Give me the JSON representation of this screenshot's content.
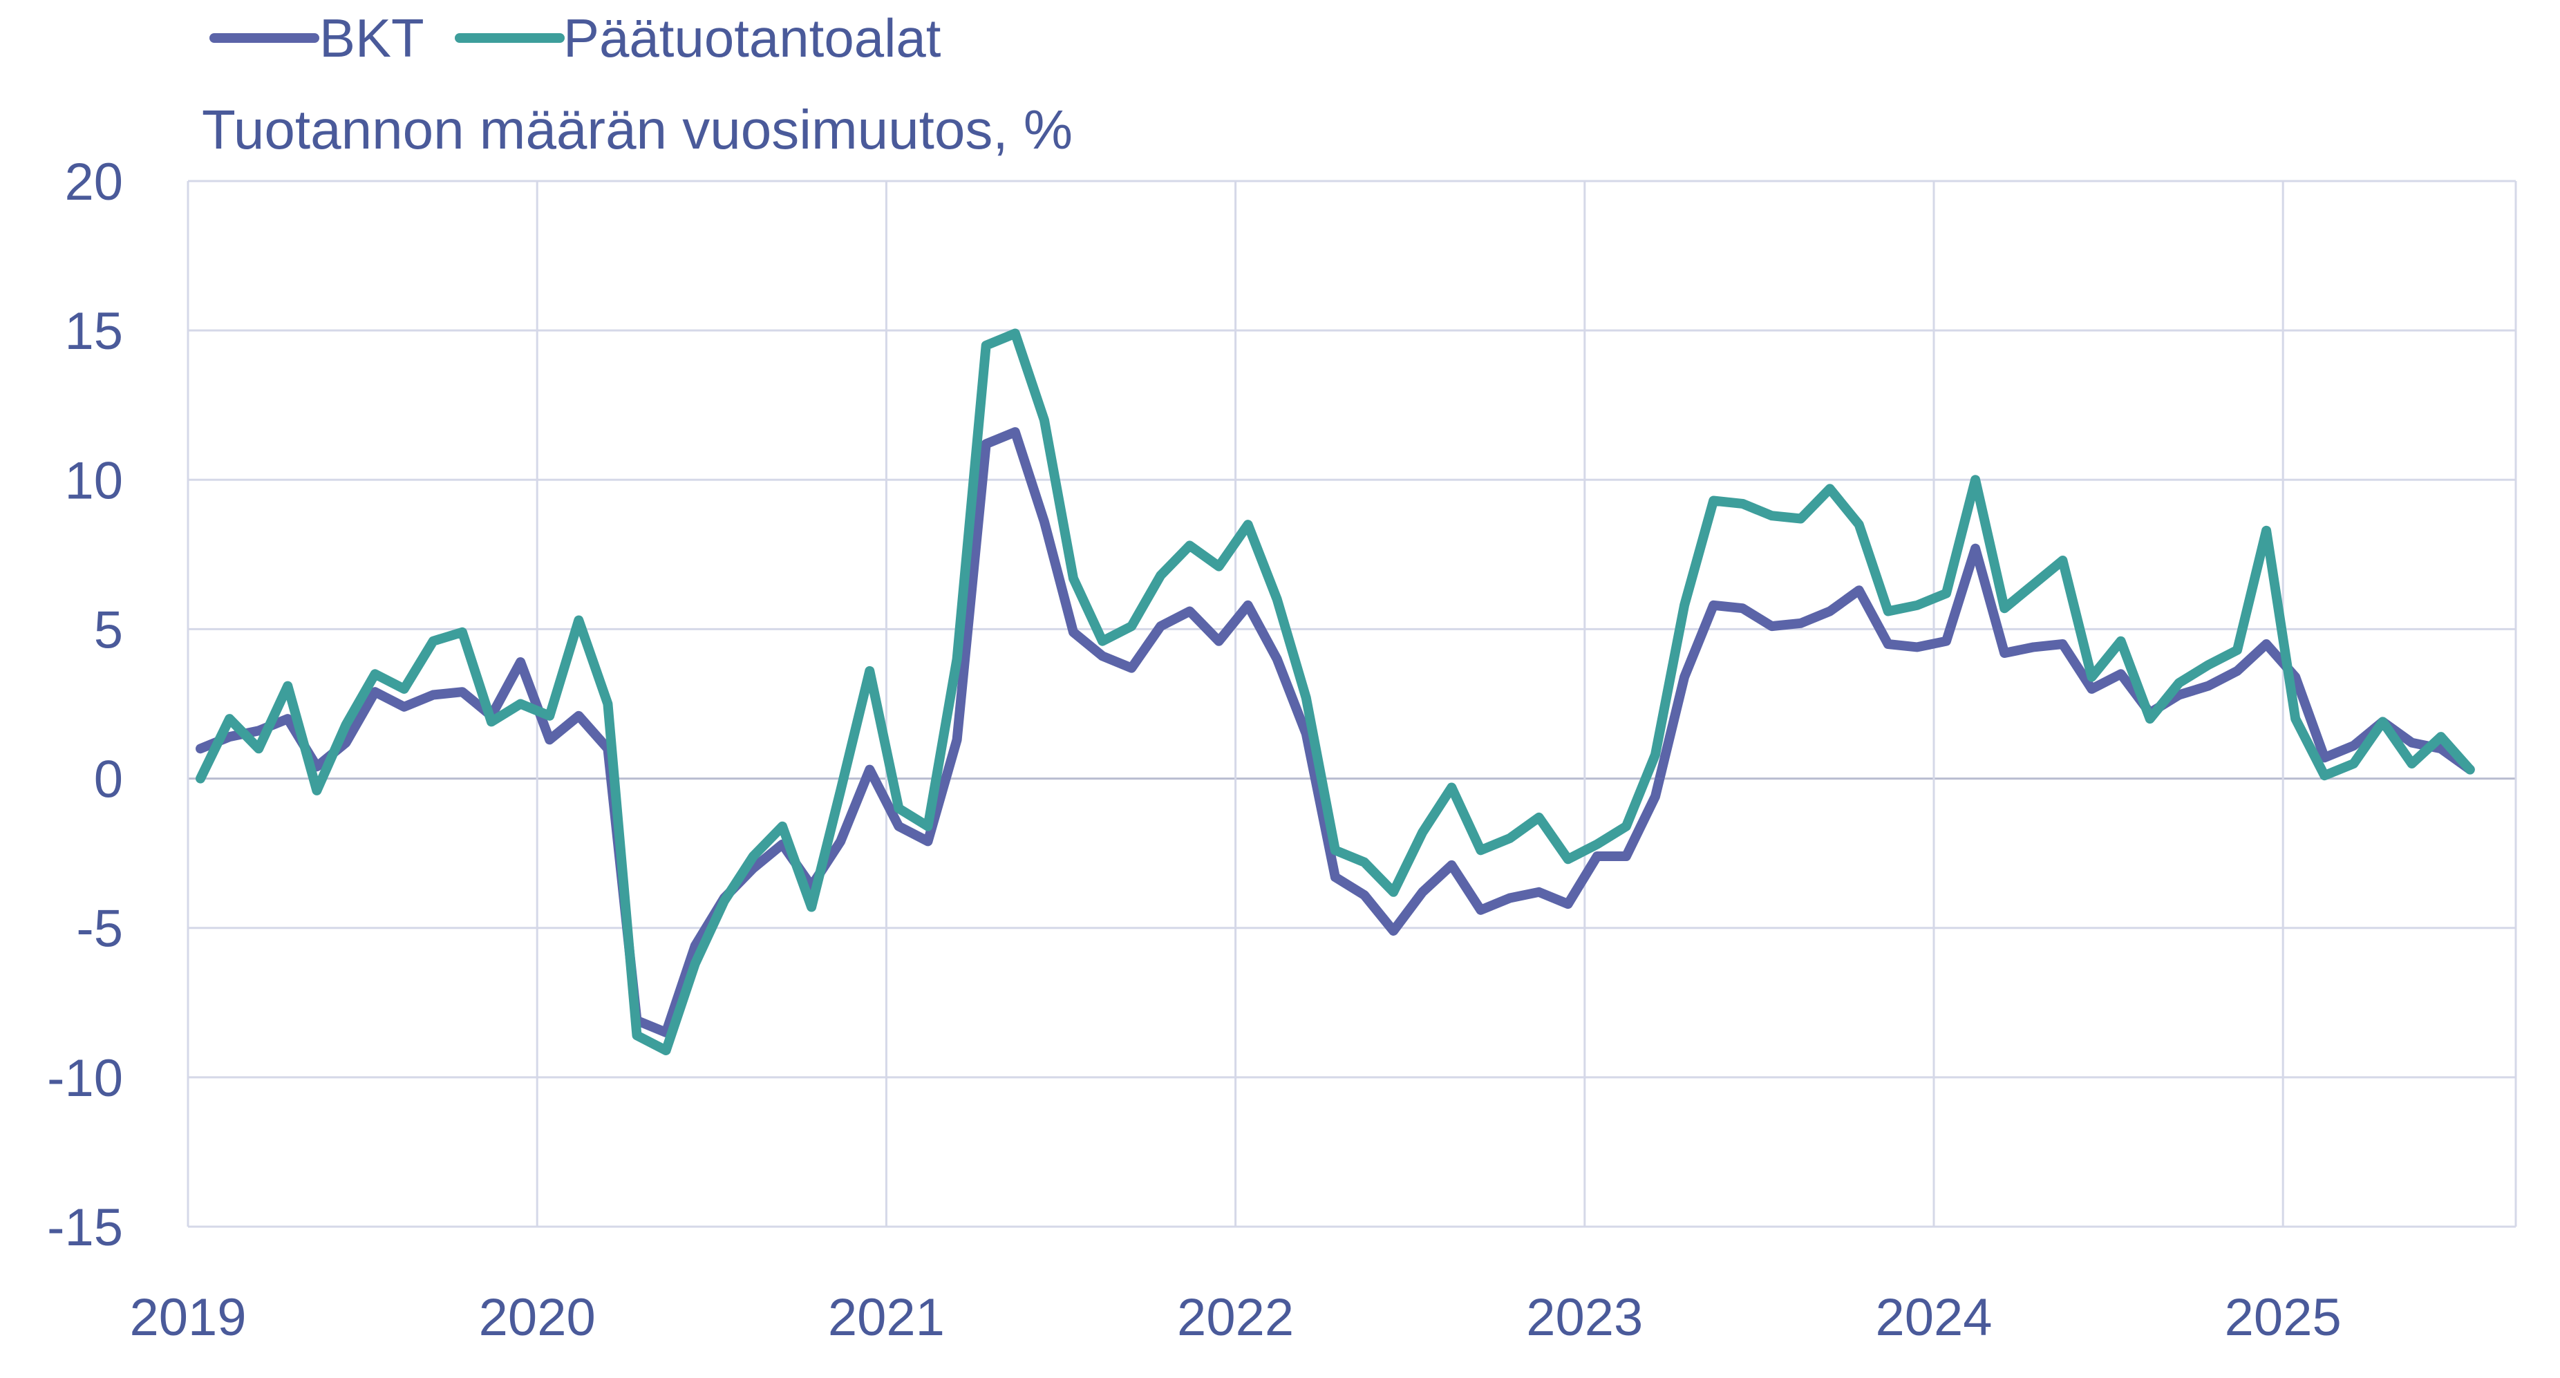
{
  "chart_data": {
    "type": "line",
    "title": "",
    "subtitle": "Tuotannon määrän vuosimuutos, %",
    "xlabel": "",
    "ylabel": "",
    "ylim": [
      -15,
      20
    ],
    "yticks": [
      20,
      15,
      10,
      5,
      0,
      -5,
      -10,
      -15
    ],
    "ytick_labels": [
      "20",
      "15",
      "10",
      "5",
      "0",
      "-5",
      "-10",
      "-15"
    ],
    "xtick_labels": [
      "2019",
      "2020",
      "2021",
      "2022",
      "2023",
      "2024",
      "2025"
    ],
    "grid": true,
    "legend_position": "top-left",
    "x_start": "2019-01",
    "x_frequency": "monthly",
    "series": [
      {
        "name": "BKT",
        "color": "#5b64a8",
        "values": [
          1.0,
          1.4,
          1.6,
          2.0,
          0.4,
          1.2,
          2.9,
          2.4,
          2.8,
          2.9,
          2.1,
          3.9,
          1.3,
          2.1,
          1.0,
          -8.1,
          -8.5,
          -5.6,
          -4.0,
          -3.0,
          -2.2,
          -3.6,
          -2.1,
          0.3,
          -1.6,
          -2.1,
          1.3,
          11.2,
          11.6,
          8.6,
          4.9,
          4.1,
          3.7,
          5.1,
          5.6,
          4.6,
          5.8,
          4.0,
          1.5,
          -3.3,
          -3.9,
          -5.1,
          -3.8,
          -2.9,
          -4.4,
          -4.0,
          -3.8,
          -4.2,
          -2.6,
          -2.6,
          -0.6,
          3.4,
          5.8,
          5.7,
          5.1,
          5.2,
          5.6,
          6.3,
          4.5,
          4.4,
          4.6,
          7.7,
          4.2,
          4.4,
          4.5,
          3.0,
          3.5,
          2.2,
          2.8,
          3.1,
          3.6,
          4.5,
          3.4,
          0.7,
          1.1,
          1.9,
          1.2,
          1.0,
          0.3
        ]
      },
      {
        "name": "Päätuotantoalat",
        "color": "#3d9e9b",
        "values": [
          0.0,
          2.0,
          1.0,
          3.1,
          -0.4,
          1.8,
          3.5,
          3.0,
          4.6,
          4.9,
          1.9,
          2.5,
          2.1,
          5.3,
          2.5,
          -8.6,
          -9.1,
          -6.2,
          -4.1,
          -2.6,
          -1.6,
          -4.3,
          -0.4,
          3.6,
          -1.0,
          -1.6,
          4.0,
          14.5,
          14.9,
          12.0,
          6.7,
          4.6,
          5.1,
          6.8,
          7.8,
          7.1,
          8.5,
          6.0,
          2.7,
          -2.4,
          -2.8,
          -3.8,
          -1.8,
          -0.3,
          -2.4,
          -2.0,
          -1.3,
          -2.7,
          -2.2,
          -1.6,
          0.8,
          5.8,
          9.3,
          9.2,
          8.8,
          8.7,
          9.7,
          8.5,
          5.6,
          5.8,
          6.2,
          10.0,
          5.7,
          6.5,
          7.3,
          3.4,
          4.6,
          2.0,
          3.2,
          3.8,
          4.3,
          8.3,
          2.0,
          0.1,
          0.5,
          1.9,
          0.5,
          1.4,
          0.3
        ]
      }
    ]
  }
}
